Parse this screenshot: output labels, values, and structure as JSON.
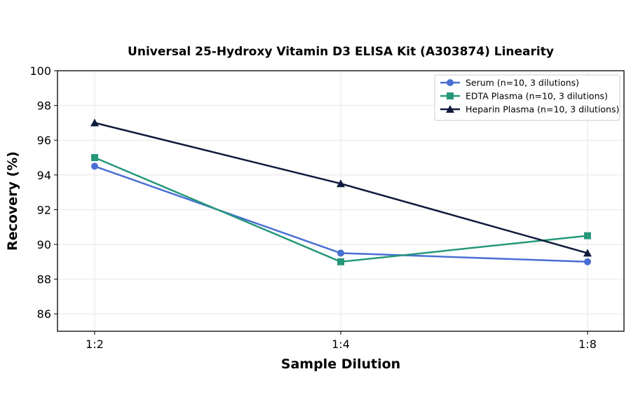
{
  "chart_data": {
    "type": "line",
    "title": "Universal 25-Hydroxy Vitamin D3 ELISA Kit (A303874) Linearity",
    "xlabel": "Sample Dilution",
    "ylabel": "Recovery (%)",
    "categories": [
      "1:2",
      "1:4",
      "1:8"
    ],
    "ylim": [
      85,
      100
    ],
    "yticks": [
      86,
      88,
      90,
      92,
      94,
      96,
      98,
      100
    ],
    "grid": true,
    "legend_position": "top-right",
    "series": [
      {
        "name": "Serum (n=10, 3 dilutions)",
        "values": [
          94.5,
          89.5,
          89.0
        ],
        "color": "#4a6fd4",
        "marker": "circle"
      },
      {
        "name": "EDTA Plasma (n=10, 3 dilutions)",
        "values": [
          95.0,
          89.0,
          90.5
        ],
        "color": "#26987a",
        "marker": "square"
      },
      {
        "name": "Heparin Plasma (n=10, 3 dilutions)",
        "values": [
          97.0,
          93.5,
          89.5
        ],
        "color": "#0f1b3d",
        "marker": "triangle"
      }
    ]
  }
}
